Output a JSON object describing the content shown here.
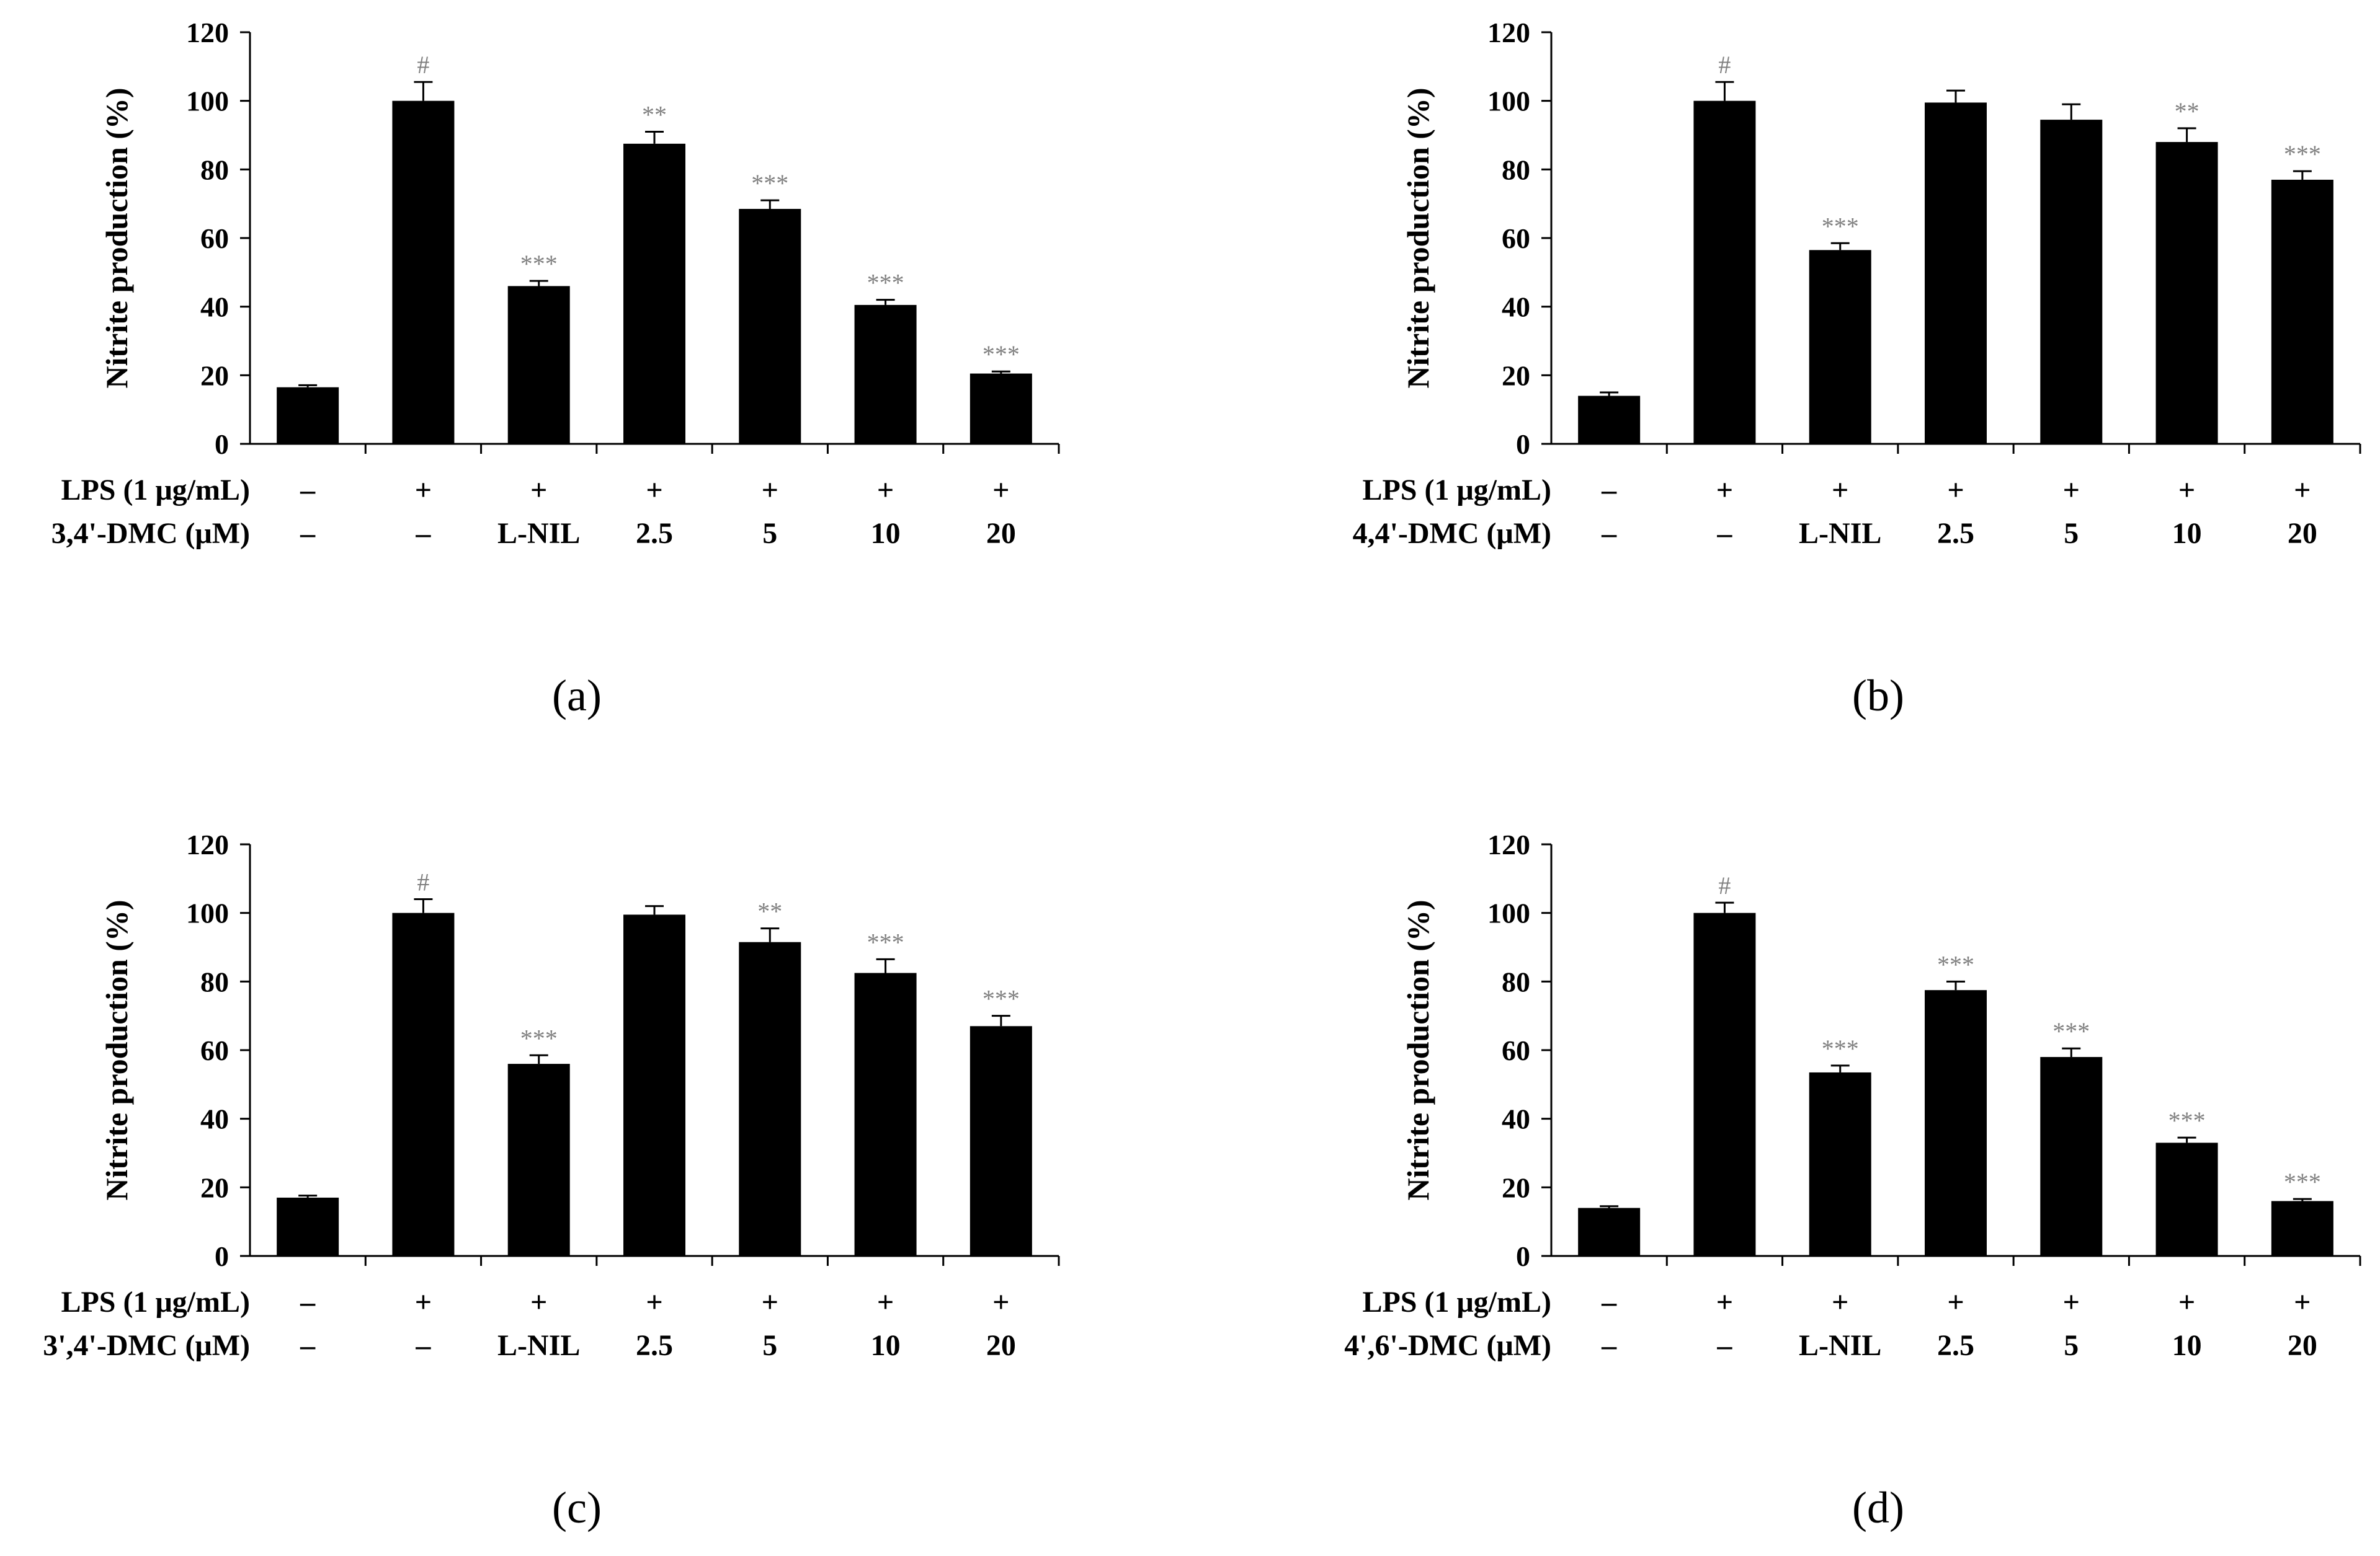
{
  "figure": {
    "panels": [
      {
        "label": "(a)",
        "compound_label": "3,4'-DMC (μM)",
        "lps_label": "LPS (1 μg/mL)",
        "lps_row": [
          "–",
          "+",
          "+",
          "+",
          "+",
          "+",
          "+"
        ],
        "treat_row": [
          "–",
          "–",
          "L-NIL",
          "2.5",
          "5",
          "10",
          "20"
        ]
      },
      {
        "label": "(b)",
        "compound_label": "4,4'-DMC (μM)",
        "lps_label": "LPS (1 μg/mL)",
        "lps_row": [
          "–",
          "+",
          "+",
          "+",
          "+",
          "+",
          "+"
        ],
        "treat_row": [
          "–",
          "–",
          "L-NIL",
          "2.5",
          "5",
          "10",
          "20"
        ]
      },
      {
        "label": "(c)",
        "compound_label": "3',4'-DMC (μM)",
        "lps_label": "LPS (1 μg/mL)",
        "lps_row": [
          "–",
          "+",
          "+",
          "+",
          "+",
          "+",
          "+"
        ],
        "treat_row": [
          "–",
          "–",
          "L-NIL",
          "2.5",
          "5",
          "10",
          "20"
        ]
      },
      {
        "label": "(d)",
        "compound_label": "4',6'-DMC (μM)",
        "lps_label": "LPS (1 μg/mL)",
        "lps_row": [
          "–",
          "+",
          "+",
          "+",
          "+",
          "+",
          "+"
        ],
        "treat_row": [
          "–",
          "–",
          "L-NIL",
          "2.5",
          "5",
          "10",
          "20"
        ]
      }
    ]
  },
  "chart_data": [
    {
      "type": "bar",
      "panel": "(a)",
      "title": "",
      "ylabel": "Nitrite production (%)",
      "ylim": [
        0,
        120
      ],
      "yticks": [
        "0",
        "20",
        "40",
        "60",
        "80",
        "100",
        "120"
      ],
      "values": [
        16.5,
        100,
        46,
        87.5,
        68.5,
        40.5,
        20.5
      ],
      "errors": [
        0.6,
        5.5,
        1.5,
        3.5,
        2.5,
        1.5,
        0.6
      ],
      "significance": [
        "",
        "#",
        "***",
        "**",
        "***",
        "***",
        "***"
      ]
    },
    {
      "type": "bar",
      "panel": "(b)",
      "title": "",
      "ylabel": "Nitrite production (%)",
      "ylim": [
        0,
        120
      ],
      "yticks": [
        "0",
        "20",
        "40",
        "60",
        "80",
        "100",
        "120"
      ],
      "values": [
        14,
        100,
        56.5,
        99.5,
        94.5,
        88,
        77
      ],
      "errors": [
        1,
        5.5,
        2,
        3.5,
        4.5,
        4,
        2.5
      ],
      "significance": [
        "",
        "#",
        "***",
        "",
        "",
        "**",
        "***"
      ]
    },
    {
      "type": "bar",
      "panel": "(c)",
      "title": "",
      "ylabel": "Nitrite production (%)",
      "ylim": [
        0,
        120
      ],
      "yticks": [
        "0",
        "20",
        "40",
        "60",
        "80",
        "100",
        "120"
      ],
      "values": [
        17,
        100,
        56,
        99.5,
        91.5,
        82.5,
        67
      ],
      "errors": [
        0.6,
        4,
        2.5,
        2.5,
        4,
        4,
        3
      ],
      "significance": [
        "",
        "#",
        "***",
        "",
        "**",
        "***",
        "***"
      ]
    },
    {
      "type": "bar",
      "panel": "(d)",
      "title": "",
      "ylabel": "Nitrite production (%)",
      "ylim": [
        0,
        120
      ],
      "yticks": [
        "0",
        "20",
        "40",
        "60",
        "80",
        "100",
        "120"
      ],
      "values": [
        14,
        100,
        53.5,
        77.5,
        58,
        33,
        16
      ],
      "errors": [
        0.5,
        3,
        2,
        2.5,
        2.5,
        1.5,
        0.6
      ],
      "significance": [
        "",
        "#",
        "***",
        "***",
        "***",
        "***",
        "***"
      ]
    }
  ],
  "colors": {
    "bar": "#000000",
    "axis": "#000000",
    "significance": "#7f7f7f"
  }
}
